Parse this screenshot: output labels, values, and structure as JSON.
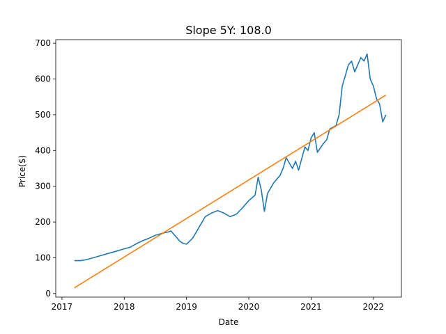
{
  "chart_data": {
    "type": "line",
    "title": "Slope 5Y: 108.0",
    "xlabel": "Date",
    "ylabel": "Price($)",
    "xlim": [
      2016.9,
      2022.45
    ],
    "ylim": [
      -10,
      710
    ],
    "x_ticks": [
      2017,
      2018,
      2019,
      2020,
      2021,
      2022
    ],
    "y_ticks": [
      0,
      100,
      200,
      300,
      400,
      500,
      600,
      700
    ],
    "grid": false,
    "series": [
      {
        "color": "#1f77b4",
        "x": [
          2017.2,
          2017.3,
          2017.4,
          2017.5,
          2017.6,
          2017.7,
          2017.8,
          2017.9,
          2018.0,
          2018.1,
          2018.2,
          2018.3,
          2018.4,
          2018.5,
          2018.6,
          2018.7,
          2018.75,
          2018.8,
          2018.9,
          2018.95,
          2019.0,
          2019.1,
          2019.2,
          2019.3,
          2019.4,
          2019.5,
          2019.6,
          2019.7,
          2019.8,
          2019.9,
          2020.0,
          2020.1,
          2020.15,
          2020.2,
          2020.25,
          2020.3,
          2020.4,
          2020.5,
          2020.55,
          2020.6,
          2020.7,
          2020.75,
          2020.8,
          2020.9,
          2020.95,
          2021.0,
          2021.05,
          2021.1,
          2021.2,
          2021.25,
          2021.3,
          2021.4,
          2021.45,
          2021.5,
          2021.55,
          2021.6,
          2021.65,
          2021.7,
          2021.75,
          2021.8,
          2021.85,
          2021.9,
          2021.95,
          2022.0,
          2022.05,
          2022.1,
          2022.15,
          2022.2
        ],
        "values": [
          92,
          92,
          95,
          100,
          105,
          110,
          115,
          120,
          125,
          130,
          140,
          148,
          155,
          163,
          168,
          172,
          175,
          165,
          145,
          140,
          138,
          155,
          185,
          215,
          225,
          232,
          225,
          215,
          222,
          240,
          260,
          275,
          325,
          290,
          230,
          280,
          310,
          330,
          350,
          380,
          350,
          370,
          345,
          410,
          400,
          435,
          450,
          395,
          420,
          430,
          460,
          470,
          500,
          580,
          610,
          640,
          650,
          620,
          640,
          660,
          650,
          670,
          600,
          580,
          545,
          530,
          480,
          500
        ]
      },
      {
        "color": "#ff7f0e",
        "x": [
          2017.2,
          2022.2
        ],
        "values": [
          16,
          555
        ]
      }
    ]
  }
}
